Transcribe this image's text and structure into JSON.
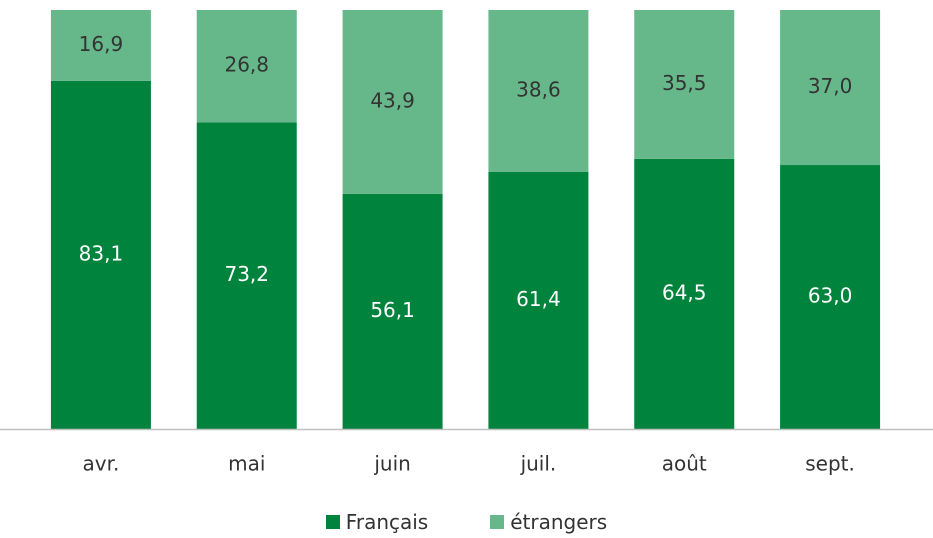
{
  "chart_data": {
    "type": "bar",
    "stacked": true,
    "percent": true,
    "categories": [
      "avr.",
      "mai",
      "juin",
      "juil.",
      "août",
      "sept."
    ],
    "series": [
      {
        "name": "Français",
        "values": [
          83.1,
          73.2,
          56.1,
          61.4,
          64.5,
          63.0
        ],
        "color": "#00843d",
        "label_color": "#ffffff"
      },
      {
        "name": "étrangers",
        "values": [
          16.9,
          26.8,
          43.9,
          38.6,
          35.5,
          37.0
        ],
        "color": "#66b88a",
        "label_color": "#333333"
      }
    ],
    "data_labels": [
      [
        "83,1",
        "73,2",
        "56,1",
        "61,4",
        "64,5",
        "63,0"
      ],
      [
        "16,9",
        "26,8",
        "43,9",
        "38,6",
        "35,5",
        "37,0"
      ]
    ],
    "ylim": [
      0,
      100
    ],
    "grid": false,
    "legend_position": "bottom",
    "axis_color": "#bfbfbf",
    "text_color": "#333333"
  }
}
